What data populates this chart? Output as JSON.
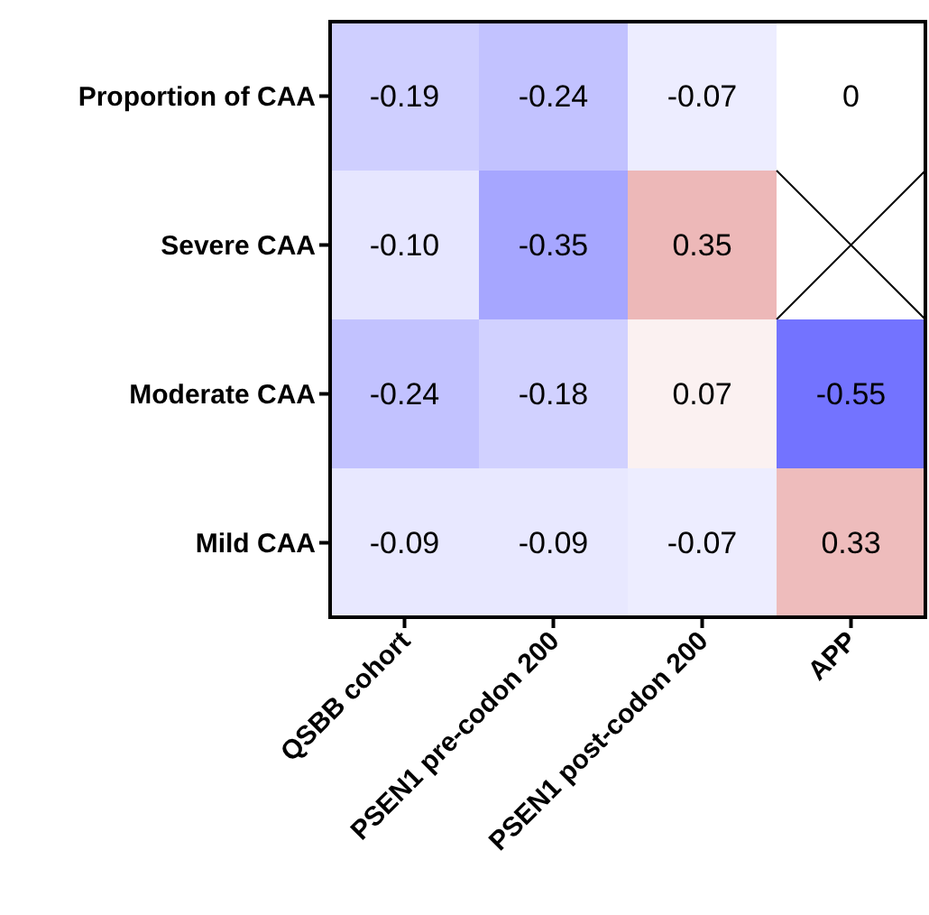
{
  "chart_data": {
    "type": "heatmap",
    "categories": [
      "QSBB cohort",
      "PSEN1 pre-codon 200",
      "PSEN1 post-codon 200",
      "APP"
    ],
    "y_categories": [
      "Proportion of CAA",
      "Severe CAA",
      "Moderate CAA",
      "Mild CAA"
    ],
    "cells": [
      [
        -0.19,
        -0.24,
        -0.07,
        0
      ],
      [
        -0.1,
        -0.35,
        0.35,
        null
      ],
      [
        -0.24,
        -0.18,
        0.07,
        -0.55
      ],
      [
        -0.09,
        -0.09,
        -0.07,
        0.33
      ]
    ],
    "cell_labels": [
      [
        "-0.19",
        "-0.24",
        "-0.07",
        "0"
      ],
      [
        "-0.10",
        "-0.35",
        "0.35",
        null
      ],
      [
        "-0.24",
        "-0.18",
        "0.07",
        "-0.55"
      ],
      [
        "-0.09",
        "-0.09",
        "-0.07",
        "0.33"
      ]
    ]
  }
}
